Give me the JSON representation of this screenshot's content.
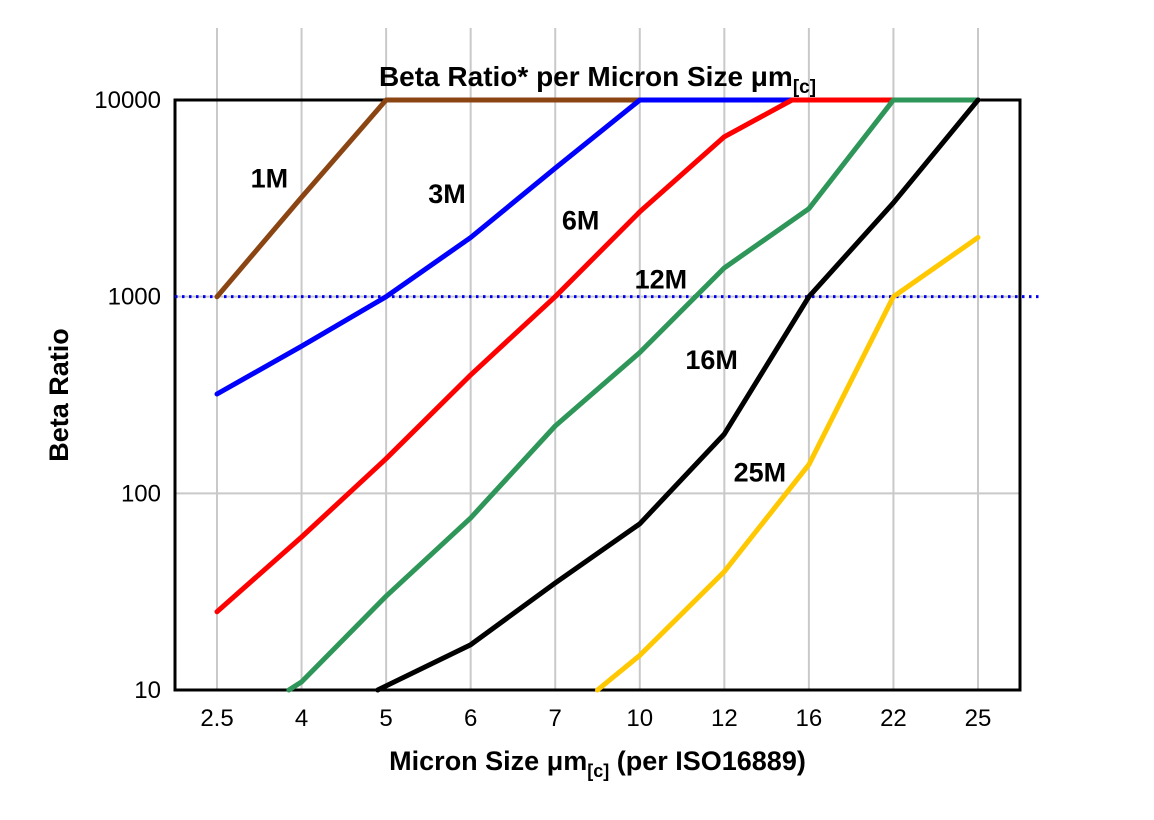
{
  "chart_data": {
    "type": "line",
    "title": {
      "text": "Beta Ratio* per Micron Size μm[c]",
      "parts": [
        {
          "t": "Beta Ratio* per Micron Size μm"
        },
        {
          "t": "[c]",
          "sub": true
        }
      ]
    },
    "xlabel": {
      "text": "Micron Size μm[c] (per ISO16889)",
      "parts": [
        {
          "t": "Micron Size μm"
        },
        {
          "t": "[c]",
          "sub": true
        },
        {
          "t": " (per ISO16889)"
        }
      ]
    },
    "ylabel": "Beta Ratio",
    "x_categories": [
      "2.5",
      "4",
      "5",
      "6",
      "7",
      "10",
      "12",
      "16",
      "22",
      "25"
    ],
    "y_ticks": [
      10,
      100,
      1000,
      10000
    ],
    "y_scale": "log",
    "ylim": [
      10,
      10000
    ],
    "grid": true,
    "grid_color": "#c9c9c9",
    "frame_color": "#000000",
    "legend_position": "none",
    "reference_line": {
      "value": 1000,
      "color": "#0000ee",
      "style": "dotted"
    },
    "series": [
      {
        "name": "1M",
        "color": "#8B4513",
        "label": {
          "x": 0.62,
          "y": 3600
        },
        "points": [
          [
            0,
            1000
          ],
          [
            1,
            3200
          ],
          [
            2,
            10000
          ],
          [
            9,
            10000
          ]
        ]
      },
      {
        "name": "3M",
        "color": "#0000FF",
        "label": {
          "x": 2.72,
          "y": 3000
        },
        "points": [
          [
            0,
            320
          ],
          [
            1,
            560
          ],
          [
            2,
            1000
          ],
          [
            3,
            2000
          ],
          [
            4,
            4500
          ],
          [
            5,
            10000
          ],
          [
            9,
            10000
          ]
        ]
      },
      {
        "name": "6M",
        "color": "#FF0000",
        "label": {
          "x": 4.3,
          "y": 2200
        },
        "points": [
          [
            0,
            25
          ],
          [
            1,
            60
          ],
          [
            2,
            150
          ],
          [
            3,
            400
          ],
          [
            4,
            1000
          ],
          [
            5,
            2700
          ],
          [
            6,
            6500
          ],
          [
            6.8,
            10000
          ],
          [
            9,
            10000
          ]
        ]
      },
      {
        "name": "12M",
        "color": "#2E9658",
        "label": {
          "x": 5.25,
          "y": 1100
        },
        "points": [
          [
            0.85,
            10
          ],
          [
            1,
            11
          ],
          [
            2,
            30
          ],
          [
            3,
            75
          ],
          [
            4,
            220
          ],
          [
            5,
            520
          ],
          [
            6,
            1400
          ],
          [
            7,
            2800
          ],
          [
            8,
            10000
          ],
          [
            9,
            10000
          ]
        ]
      },
      {
        "name": "16M",
        "color": "#000000",
        "label": {
          "x": 5.85,
          "y": 430
        },
        "points": [
          [
            1.9,
            10
          ],
          [
            3,
            17
          ],
          [
            4,
            35
          ],
          [
            5,
            70
          ],
          [
            6,
            200
          ],
          [
            7,
            1000
          ],
          [
            8,
            3000
          ],
          [
            9,
            10000
          ]
        ]
      },
      {
        "name": "25M",
        "color": "#FFC800",
        "label": {
          "x": 6.42,
          "y": 115
        },
        "points": [
          [
            4.5,
            10
          ],
          [
            5,
            15
          ],
          [
            6,
            40
          ],
          [
            7,
            140
          ],
          [
            8,
            1000
          ],
          [
            9,
            2000
          ]
        ]
      }
    ]
  }
}
